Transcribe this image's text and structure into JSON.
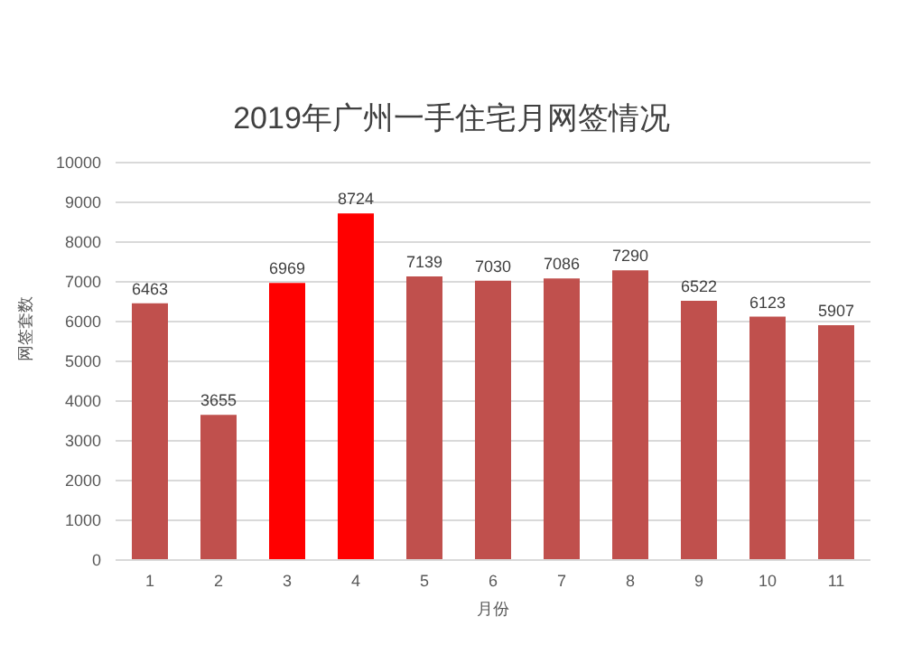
{
  "chart_data": {
    "type": "bar",
    "title": "2019年广州一手住宅月网签情况",
    "xlabel": "月份",
    "ylabel": "网签套数",
    "categories": [
      "1",
      "2",
      "3",
      "4",
      "5",
      "6",
      "7",
      "8",
      "9",
      "10",
      "11"
    ],
    "values": [
      6463,
      3655,
      6969,
      8724,
      7139,
      7030,
      7086,
      7290,
      6522,
      6123,
      5907
    ],
    "colors": [
      "#c0504d",
      "#c0504d",
      "#ff0000",
      "#ff0000",
      "#c0504d",
      "#c0504d",
      "#c0504d",
      "#c0504d",
      "#c0504d",
      "#c0504d",
      "#c0504d"
    ],
    "ylim": [
      0,
      10000
    ],
    "yticks": [
      0,
      1000,
      2000,
      3000,
      4000,
      5000,
      6000,
      7000,
      8000,
      9000,
      10000
    ],
    "grid": "y",
    "data_labels": true
  }
}
